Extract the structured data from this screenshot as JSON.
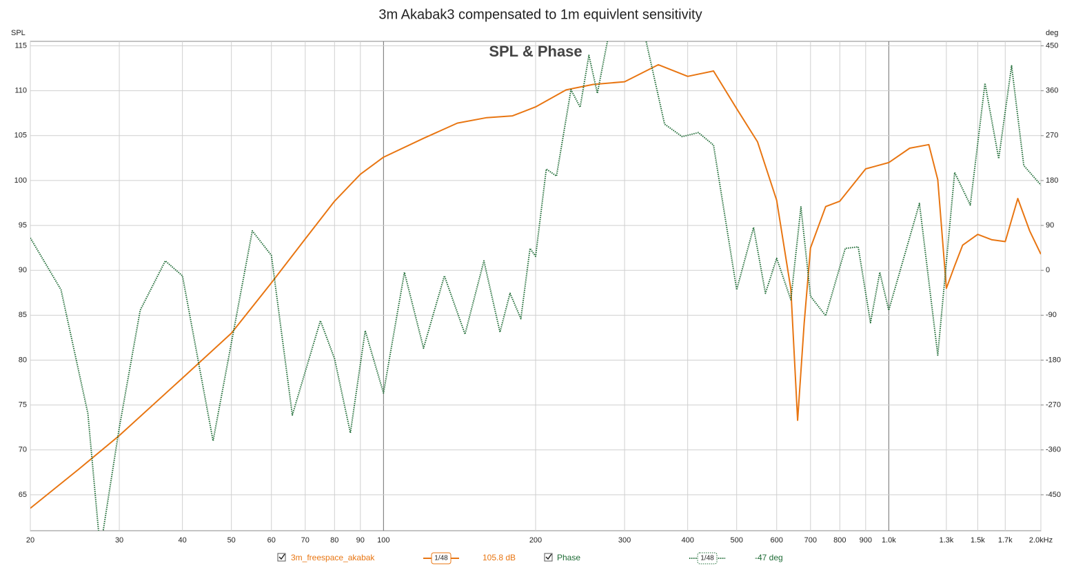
{
  "chart_data": {
    "type": "line",
    "title": "3m Akabak3 compensated to 1m equivlent sensitivity",
    "subtitle": "SPL & Phase",
    "y_label": "SPL",
    "y2_label": "deg",
    "log_x": true,
    "grid": true,
    "xlim": [
      20,
      2000
    ],
    "xticks": [
      20,
      30,
      40,
      50,
      60,
      70,
      80,
      90,
      100,
      200,
      300,
      400,
      500,
      600,
      700,
      800,
      900,
      {
        "value": 1000,
        "label": "1.0k"
      },
      {
        "value": 1300,
        "label": "1.3k"
      },
      {
        "value": 1500,
        "label": "1.5k"
      },
      {
        "value": 1700,
        "label": "1.7k"
      },
      {
        "value": 2000,
        "label": "2.0kHz"
      }
    ],
    "ylim": [
      61,
      115.5
    ],
    "yticks": [
      65,
      70,
      75,
      80,
      85,
      90,
      95,
      100,
      105,
      110,
      115
    ],
    "y2lim": [
      -522,
      459
    ],
    "y2ticks": [
      -450,
      -360,
      -270,
      -180,
      -90,
      0,
      90,
      180,
      270,
      360,
      450
    ],
    "smoothing": "1/48",
    "series": [
      {
        "name": "3m_freespace_akabak",
        "color": "#e87511",
        "legend_value": "105.8 dB",
        "x": [
          20,
          25,
          30,
          40,
          50,
          60,
          70,
          80,
          90,
          100,
          120,
          140,
          160,
          180,
          200,
          230,
          260,
          300,
          350,
          400,
          450,
          500,
          550,
          600,
          640,
          660,
          680,
          700,
          750,
          800,
          900,
          1000,
          1100,
          1200,
          1250,
          1300,
          1350,
          1400,
          1500,
          1600,
          1700,
          1800,
          1900,
          2000
        ],
        "values": [
          63.5,
          67.9,
          71.6,
          78.0,
          83.0,
          88.6,
          93.5,
          97.7,
          100.7,
          102.6,
          104.7,
          106.4,
          107.0,
          107.2,
          108.2,
          110.1,
          110.7,
          111.0,
          112.9,
          111.6,
          112.2,
          108.0,
          104.3,
          97.8,
          87.9,
          73.3,
          84.1,
          92.5,
          97.1,
          97.7,
          101.3,
          102.0,
          103.6,
          104.0,
          100.1,
          88.0,
          90.5,
          92.8,
          94.0,
          93.4,
          93.2,
          98.0,
          94.4,
          91.8
        ]
      },
      {
        "name": "Phase",
        "color": "#1e6b35",
        "axis": "y2",
        "dotted": true,
        "legend_value": "-47 deg",
        "x": [
          20,
          23,
          26,
          27.5,
          30,
          33,
          37,
          40,
          46,
          55,
          60,
          66,
          75,
          80,
          86,
          92,
          100,
          110,
          120,
          132,
          145,
          158,
          170,
          178,
          187,
          195,
          200,
          210,
          220,
          235,
          245,
          255,
          265,
          280,
          330,
          360,
          390,
          420,
          450,
          500,
          540,
          570,
          600,
          640,
          670,
          700,
          750,
          820,
          870,
          920,
          960,
          1000,
          1150,
          1250,
          1350,
          1450,
          1550,
          1650,
          1750,
          1850,
          2000
        ],
        "values": [
          65,
          -39,
          -287,
          -560,
          -315,
          -80,
          19,
          -11,
          -342,
          79,
          30,
          -290,
          -101,
          -177,
          -326,
          -121,
          -246,
          -4,
          -156,
          -11,
          -128,
          19,
          -124,
          -46,
          -97,
          44,
          28,
          203,
          189,
          362,
          327,
          431,
          355,
          480,
          465,
          293,
          268,
          276,
          251,
          -39,
          86,
          -46,
          24,
          -59,
          127,
          -52,
          -91,
          44,
          47,
          -105,
          -4,
          -80,
          134,
          -170,
          196,
          131,
          375,
          224,
          410,
          210,
          171
        ]
      }
    ]
  }
}
